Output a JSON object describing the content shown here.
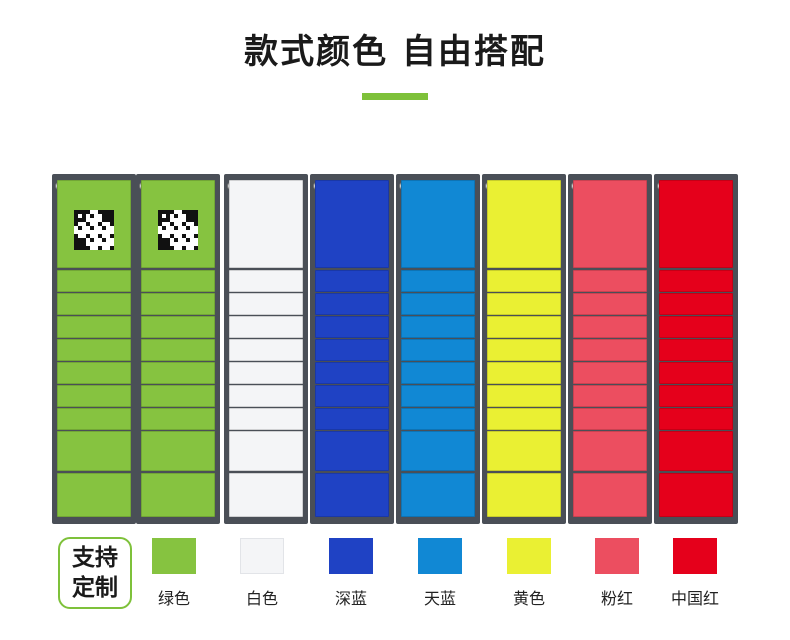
{
  "title": "款式颜色 自由搭配",
  "badge": {
    "line1": "支持",
    "line2": "定制"
  },
  "colors": [
    {
      "name": "绿色",
      "hex": "#86c340"
    },
    {
      "name": "白色",
      "hex": "#f4f5f7"
    },
    {
      "name": "深蓝",
      "hex": "#1f42c4"
    },
    {
      "name": "天蓝",
      "hex": "#1188d4"
    },
    {
      "name": "黄色",
      "hex": "#eaf033"
    },
    {
      "name": "粉红",
      "hex": "#ec4e60"
    },
    {
      "name": "中国红",
      "hex": "#e5001b"
    }
  ],
  "accent": "#7ec13a"
}
